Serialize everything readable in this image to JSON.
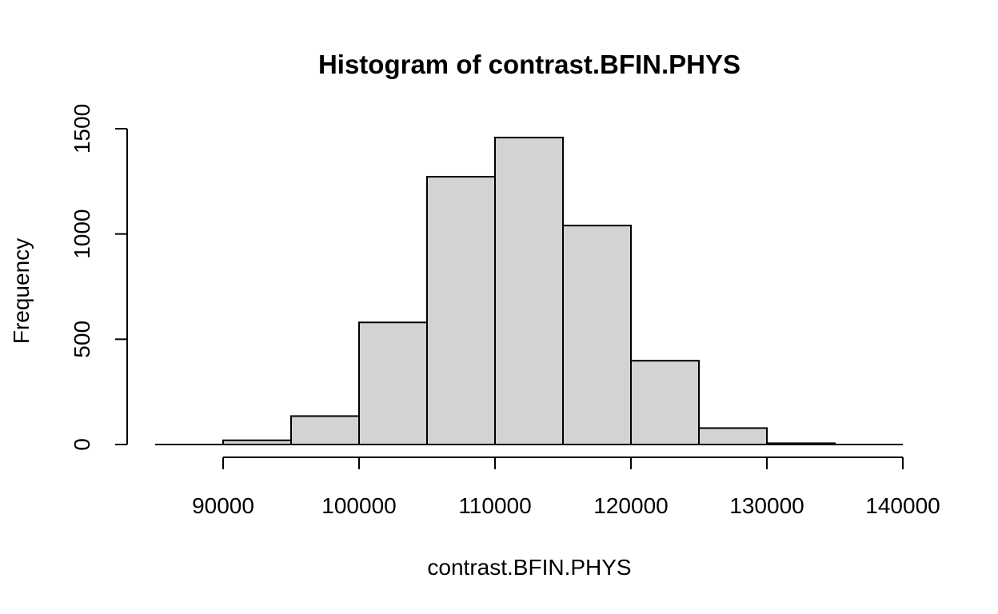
{
  "chart_data": {
    "type": "bar",
    "title": "Histogram of contrast.BFIN.PHYS",
    "xlabel": "contrast.BFIN.PHYS",
    "ylabel": "Frequency",
    "bins": [
      {
        "x0": 85000,
        "x1": 90000,
        "count": 0
      },
      {
        "x0": 90000,
        "x1": 95000,
        "count": 20
      },
      {
        "x0": 95000,
        "x1": 100000,
        "count": 135
      },
      {
        "x0": 100000,
        "x1": 105000,
        "count": 580
      },
      {
        "x0": 105000,
        "x1": 110000,
        "count": 1272
      },
      {
        "x0": 110000,
        "x1": 115000,
        "count": 1458
      },
      {
        "x0": 115000,
        "x1": 120000,
        "count": 1040
      },
      {
        "x0": 120000,
        "x1": 125000,
        "count": 398
      },
      {
        "x0": 125000,
        "x1": 130000,
        "count": 78
      },
      {
        "x0": 130000,
        "x1": 135000,
        "count": 6
      },
      {
        "x0": 135000,
        "x1": 140000,
        "count": 0
      }
    ],
    "x_ticks": [
      "90000",
      "100000",
      "110000",
      "120000",
      "130000",
      "140000"
    ],
    "y_ticks": [
      "0",
      "500",
      "1000",
      "1500"
    ],
    "xlim": [
      85000,
      140000
    ],
    "ylim": [
      0,
      1500
    ],
    "bar_color": "#d3d3d3",
    "grid": false,
    "legend": "none"
  }
}
